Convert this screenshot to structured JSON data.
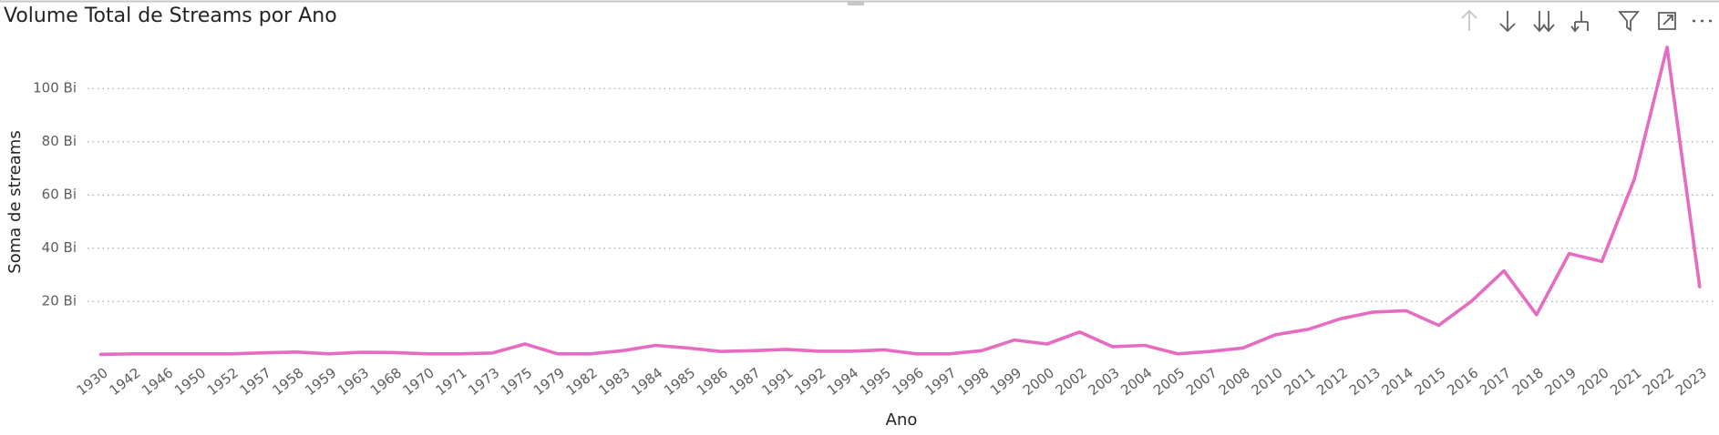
{
  "chart_data": {
    "type": "line",
    "title": "Volume Total de Streams por Ano",
    "x_label": "Ano",
    "y_label": "Soma de streams",
    "categories": [
      "1930",
      "1942",
      "1946",
      "1950",
      "1952",
      "1957",
      "1958",
      "1959",
      "1963",
      "1968",
      "1970",
      "1971",
      "1973",
      "1975",
      "1979",
      "1982",
      "1983",
      "1984",
      "1985",
      "1986",
      "1987",
      "1991",
      "1992",
      "1994",
      "1995",
      "1996",
      "1997",
      "1998",
      "1999",
      "2000",
      "2002",
      "2003",
      "2004",
      "2005",
      "2007",
      "2008",
      "2010",
      "2011",
      "2012",
      "2013",
      "2014",
      "2015",
      "2016",
      "2017",
      "2018",
      "2019",
      "2020",
      "2021",
      "2022",
      "2023"
    ],
    "series": [
      {
        "name": "Soma de streams",
        "color": "#e66cc1",
        "values": [
          100000000,
          300000000,
          300000000,
          300000000,
          300000000,
          700000000,
          1000000000,
          300000000,
          900000000,
          800000000,
          300000000,
          300000000,
          600000000,
          4000000000,
          300000000,
          300000000,
          1500000000,
          3500000000,
          2500000000,
          1200000000,
          1500000000,
          2000000000,
          1300000000,
          1300000000,
          1800000000,
          300000000,
          300000000,
          1500000000,
          5500000000,
          4000000000,
          8500000000,
          3000000000,
          3500000000,
          300000000,
          1200000000,
          2500000000,
          7500000000,
          9500000000,
          13500000000,
          16000000000,
          16500000000,
          11000000000,
          20000000000,
          31500000000,
          15000000000,
          38000000000,
          35000000000,
          66000000000,
          115500000000,
          25500000000
        ]
      }
    ],
    "ylim": [
      0,
      117000000000
    ],
    "yticks": [
      {
        "value": 20000000000,
        "label": "20 Bi"
      },
      {
        "value": 40000000000,
        "label": "40 Bi"
      },
      {
        "value": 60000000000,
        "label": "60 Bi"
      },
      {
        "value": 80000000000,
        "label": "80 Bi"
      },
      {
        "value": 100000000000,
        "label": "100 Bi"
      }
    ],
    "grid": true
  }
}
